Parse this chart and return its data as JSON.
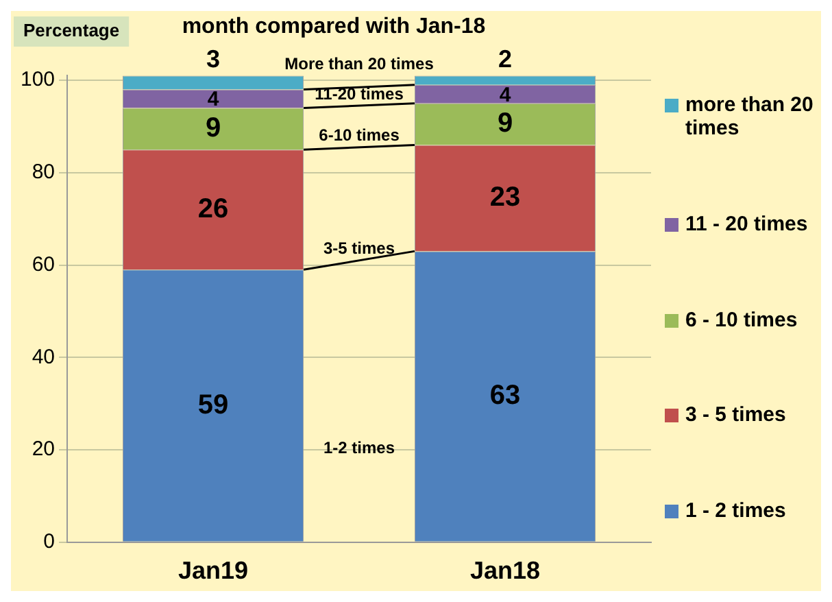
{
  "chart_data": {
    "type": "bar",
    "title": "month compared with Jan-18",
    "ylabel": "Percentage",
    "categories": [
      "Jan19",
      "Jan18"
    ],
    "stacked": true,
    "data_labels": true,
    "grid": "y",
    "legend": "right",
    "ylim": [
      0,
      101
    ],
    "yticks": [
      0,
      20,
      40,
      60,
      80,
      100
    ],
    "series": [
      {
        "name": "1 - 2 times",
        "color": "#4f81bd",
        "values": [
          59,
          63
        ]
      },
      {
        "name": "3 - 5 times",
        "color": "#c0504d",
        "values": [
          26,
          23
        ]
      },
      {
        "name": "6 - 10 times",
        "color": "#9bbb59",
        "values": [
          9,
          9
        ]
      },
      {
        "name": "11 - 20 times",
        "color": "#8064a2",
        "values": [
          4,
          4
        ]
      },
      {
        "name": "more than 20 times",
        "color": "#4bacc6",
        "values": [
          3,
          2
        ]
      }
    ],
    "annotations": [
      "1-2 times",
      "3-5 times",
      "6-10 times",
      "11-20 times",
      "More than 20 times"
    ]
  }
}
